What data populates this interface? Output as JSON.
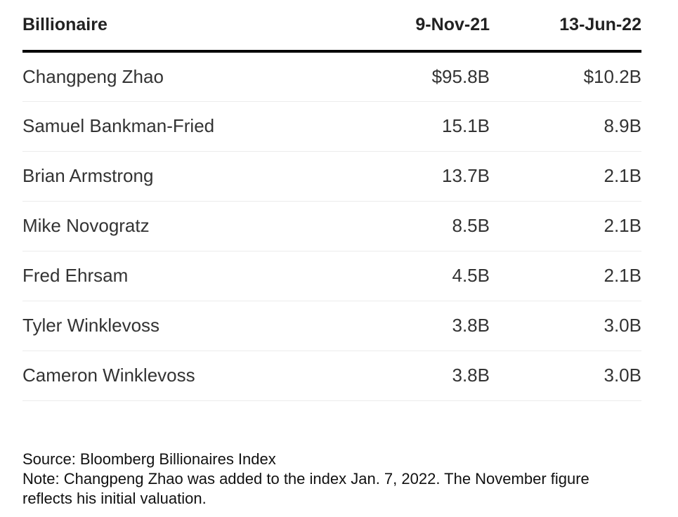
{
  "chart_data": {
    "type": "table",
    "columns": [
      "Billionaire",
      "9-Nov-21",
      "13-Jun-22"
    ],
    "rows": [
      {
        "name": "Changpeng Zhao",
        "nov21": "$95.8B",
        "jun22": "$10.2B"
      },
      {
        "name": "Samuel Bankman-Fried",
        "nov21": "15.1B",
        "jun22": "8.9B"
      },
      {
        "name": "Brian Armstrong",
        "nov21": "13.7B",
        "jun22": "2.1B"
      },
      {
        "name": "Mike Novogratz",
        "nov21": "8.5B",
        "jun22": "2.1B"
      },
      {
        "name": "Fred Ehrsam",
        "nov21": "4.5B",
        "jun22": "2.1B"
      },
      {
        "name": "Tyler Winklevoss",
        "nov21": "3.8B",
        "jun22": "3.0B"
      },
      {
        "name": "Cameron Winklevoss",
        "nov21": "3.8B",
        "jun22": "3.0B"
      }
    ],
    "source": "Source: Bloomberg Billionaires Index",
    "note": "Note: Changpeng Zhao was added to the index Jan. 7, 2022. The November figure reflects his initial valuation."
  }
}
